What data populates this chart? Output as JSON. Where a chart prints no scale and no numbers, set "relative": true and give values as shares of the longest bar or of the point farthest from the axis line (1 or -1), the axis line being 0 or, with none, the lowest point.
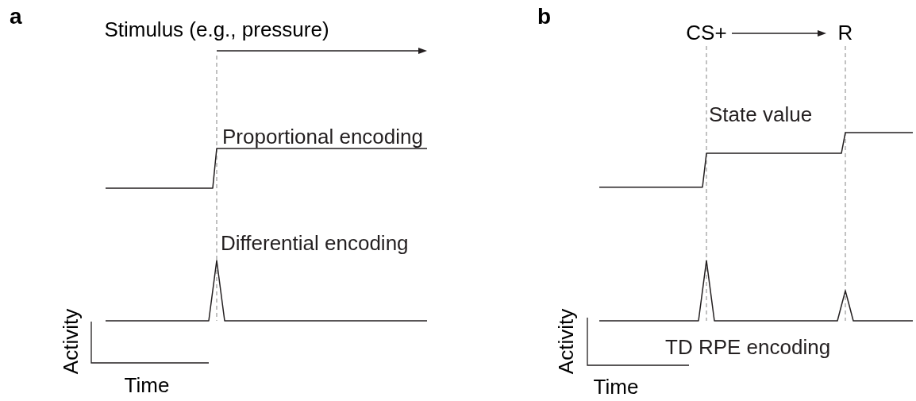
{
  "chart_data": [
    {
      "type": "line",
      "title": "a",
      "relative": true,
      "xlabel": "Time",
      "ylabel": "Activity",
      "annotations": [
        "Stimulus (e.g., pressure)"
      ],
      "categories": [
        null,
        null,
        null,
        null,
        null,
        null,
        null,
        null,
        null,
        null,
        null,
        null,
        null,
        null,
        null,
        null,
        null,
        null,
        null,
        null,
        null,
        null,
        null,
        null,
        null,
        null,
        null,
        null,
        null,
        null,
        null,
        null,
        null,
        null,
        null,
        null,
        null,
        null,
        null,
        null,
        null,
        null,
        null,
        null,
        null,
        null,
        null,
        null,
        null,
        null,
        null,
        null,
        null,
        null,
        null,
        null,
        null,
        null,
        null,
        null,
        null,
        null,
        null,
        null,
        null,
        null,
        null,
        null,
        null,
        null,
        null,
        null,
        null,
        null,
        null,
        null,
        null,
        null,
        null,
        null,
        null,
        null
      ],
      "series": [
        {
          "name": "Proportional encoding",
          "color": "#231f20",
          "values": [
            0.77,
            0.77,
            0.77,
            0.77,
            0.77,
            0.77,
            0.77,
            0.77,
            0.77,
            0.77,
            0.77,
            0.77,
            0.77,
            0.77,
            0.77,
            0.77,
            0.77,
            0.77,
            0.77,
            0.77,
            0.77,
            0.77,
            0.77,
            0.77,
            0.77,
            0.77,
            0.77,
            0.77,
            1,
            1,
            1,
            1,
            1,
            1,
            1,
            1,
            1,
            1,
            1,
            1,
            1,
            1,
            1,
            1,
            1,
            1,
            1,
            1,
            1,
            1,
            1,
            1,
            1,
            1,
            1,
            1,
            1,
            1,
            1,
            1,
            1,
            1,
            1,
            1,
            1,
            1,
            1,
            1,
            1,
            1,
            1,
            1,
            1,
            1,
            1,
            1,
            1,
            1,
            1,
            1,
            1,
            1
          ]
        },
        {
          "name": "Differential encoding",
          "color": "#231f20",
          "values": [
            0,
            0,
            0,
            0,
            0,
            0,
            0,
            0,
            0,
            0,
            0,
            0,
            0,
            0,
            0,
            0,
            0,
            0,
            0,
            0,
            0,
            0,
            0,
            0,
            0,
            0,
            0,
            0.175,
            0.35,
            0.175,
            0,
            0,
            0,
            0,
            0,
            0,
            0,
            0,
            0,
            0,
            0,
            0,
            0,
            0,
            0,
            0,
            0,
            0,
            0,
            0,
            0,
            0,
            0,
            0,
            0,
            0,
            0,
            0,
            0,
            0,
            0,
            0,
            0,
            0,
            0,
            0,
            0,
            0,
            0,
            0,
            0,
            0,
            0,
            0,
            0,
            0,
            0,
            0,
            0,
            0,
            0,
            0
          ]
        }
      ]
    },
    {
      "type": "line",
      "title": "b",
      "relative": true,
      "xlabel": "Time",
      "ylabel": "Activity",
      "annotations": [
        "CS+",
        "R"
      ],
      "categories": [
        null,
        null,
        null,
        null,
        null,
        null,
        null,
        null,
        null,
        null,
        null,
        null,
        null,
        null,
        null,
        null,
        null,
        null,
        null,
        null,
        null,
        null,
        null,
        null,
        null,
        null,
        null,
        null,
        null,
        null,
        null,
        null,
        null,
        null,
        null,
        null,
        null,
        null,
        null,
        null,
        null,
        null,
        null,
        null,
        null,
        null,
        null,
        null,
        null,
        null,
        null,
        null,
        null,
        null,
        null,
        null,
        null,
        null,
        null,
        null,
        null,
        null,
        null,
        null,
        null,
        null,
        null,
        null,
        null,
        null,
        null,
        null,
        null,
        null,
        null,
        null,
        null,
        null,
        null,
        null
      ],
      "series": [
        {
          "name": "State value",
          "color": "#231f20",
          "values": [
            0.71,
            0.71,
            0.71,
            0.71,
            0.71,
            0.71,
            0.71,
            0.71,
            0.71,
            0.71,
            0.71,
            0.71,
            0.71,
            0.71,
            0.71,
            0.71,
            0.71,
            0.71,
            0.71,
            0.71,
            0.71,
            0.71,
            0.71,
            0.71,
            0.71,
            0.71,
            0.71,
            0.89,
            0.89,
            0.89,
            0.89,
            0.89,
            0.89,
            0.89,
            0.89,
            0.89,
            0.89,
            0.89,
            0.89,
            0.89,
            0.89,
            0.89,
            0.89,
            0.89,
            0.89,
            0.89,
            0.89,
            0.89,
            0.89,
            0.89,
            0.89,
            0.89,
            0.89,
            0.89,
            0.89,
            0.89,
            0.89,
            0.89,
            0.89,
            0.89,
            0.89,
            0.89,
            1,
            1,
            1,
            1,
            1,
            1,
            1,
            1,
            1,
            1,
            1,
            1,
            1,
            1,
            1,
            1,
            1,
            1
          ]
        },
        {
          "name": "TD RPE encoding",
          "color": "#231f20",
          "values": [
            0,
            0,
            0,
            0,
            0,
            0,
            0,
            0,
            0,
            0,
            0,
            0,
            0,
            0,
            0,
            0,
            0,
            0,
            0,
            0,
            0,
            0,
            0,
            0,
            0,
            0,
            0.16,
            0.32,
            0.16,
            0,
            0,
            0,
            0,
            0,
            0,
            0,
            0,
            0,
            0,
            0,
            0,
            0,
            0,
            0,
            0,
            0,
            0,
            0,
            0,
            0,
            0,
            0,
            0,
            0,
            0,
            0,
            0,
            0,
            0,
            0,
            0,
            0.08,
            0.16,
            0.08,
            0,
            0,
            0,
            0,
            0,
            0,
            0,
            0,
            0,
            0,
            0,
            0,
            0,
            0,
            0,
            0
          ]
        }
      ]
    }
  ]
}
